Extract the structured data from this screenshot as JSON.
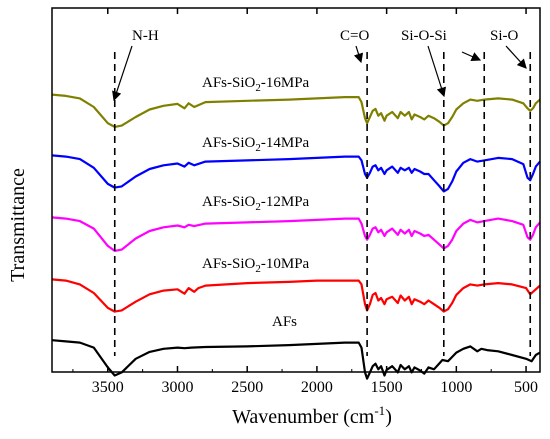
{
  "chart_data": {
    "type": "line",
    "xlabel": "Wavenumber (cm",
    "xlabel_sup": "-1",
    "xlabel_end": ")",
    "ylabel": "Transmittance",
    "xlim": [
      3900,
      400
    ],
    "x_reversed": true,
    "xticks": [
      3500,
      3000,
      2500,
      2000,
      1500,
      1000,
      500
    ],
    "ylim": [
      0,
      1
    ],
    "y_ticks_shown": false,
    "grid": false,
    "series": [
      {
        "name": "AFs",
        "label_parts": [
          "AFs",
          "",
          ""
        ],
        "color": "#000000",
        "offset": 0.0,
        "points": [
          [
            3900,
            0.82
          ],
          [
            3800,
            0.8
          ],
          [
            3700,
            0.78
          ],
          [
            3600,
            0.7
          ],
          [
            3500,
            0.38
          ],
          [
            3450,
            0.25
          ],
          [
            3400,
            0.3
          ],
          [
            3300,
            0.52
          ],
          [
            3200,
            0.63
          ],
          [
            3100,
            0.68
          ],
          [
            3000,
            0.7
          ],
          [
            2950,
            0.69
          ],
          [
            2900,
            0.7
          ],
          [
            2800,
            0.71
          ],
          [
            2500,
            0.72
          ],
          [
            2200,
            0.74
          ],
          [
            2000,
            0.76
          ],
          [
            1800,
            0.78
          ],
          [
            1700,
            0.78
          ],
          [
            1680,
            0.7
          ],
          [
            1655,
            0.3
          ],
          [
            1640,
            0.2
          ],
          [
            1620,
            0.3
          ],
          [
            1600,
            0.4
          ],
          [
            1580,
            0.44
          ],
          [
            1560,
            0.35
          ],
          [
            1540,
            0.4
          ],
          [
            1515,
            0.25
          ],
          [
            1500,
            0.34
          ],
          [
            1460,
            0.4
          ],
          [
            1420,
            0.3
          ],
          [
            1400,
            0.42
          ],
          [
            1370,
            0.35
          ],
          [
            1340,
            0.4
          ],
          [
            1320,
            0.3
          ],
          [
            1300,
            0.38
          ],
          [
            1260,
            0.33
          ],
          [
            1230,
            0.28
          ],
          [
            1200,
            0.38
          ],
          [
            1160,
            0.35
          ],
          [
            1120,
            0.45
          ],
          [
            1100,
            0.5
          ],
          [
            1060,
            0.48
          ],
          [
            1030,
            0.55
          ],
          [
            1000,
            0.62
          ],
          [
            950,
            0.68
          ],
          [
            900,
            0.72
          ],
          [
            850,
            0.64
          ],
          [
            820,
            0.68
          ],
          [
            780,
            0.66
          ],
          [
            700,
            0.64
          ],
          [
            600,
            0.58
          ],
          [
            500,
            0.52
          ],
          [
            460,
            0.48
          ],
          [
            430,
            0.58
          ],
          [
            400,
            0.62
          ]
        ]
      },
      {
        "name": "AFs-SiO2-10MPa",
        "label_parts": [
          "AFs-SiO",
          "2",
          "-10MPa"
        ],
        "color": "#ff0000",
        "offset": 1.0,
        "points": [
          [
            3900,
            0.8
          ],
          [
            3800,
            0.78
          ],
          [
            3700,
            0.72
          ],
          [
            3600,
            0.58
          ],
          [
            3500,
            0.34
          ],
          [
            3450,
            0.28
          ],
          [
            3400,
            0.3
          ],
          [
            3300,
            0.44
          ],
          [
            3200,
            0.56
          ],
          [
            3100,
            0.62
          ],
          [
            3000,
            0.64
          ],
          [
            2950,
            0.57
          ],
          [
            2920,
            0.66
          ],
          [
            2880,
            0.6
          ],
          [
            2850,
            0.66
          ],
          [
            2800,
            0.7
          ],
          [
            2500,
            0.74
          ],
          [
            2200,
            0.76
          ],
          [
            2000,
            0.78
          ],
          [
            1800,
            0.78
          ],
          [
            1700,
            0.78
          ],
          [
            1680,
            0.72
          ],
          [
            1655,
            0.4
          ],
          [
            1640,
            0.3
          ],
          [
            1620,
            0.4
          ],
          [
            1600,
            0.55
          ],
          [
            1580,
            0.58
          ],
          [
            1560,
            0.46
          ],
          [
            1540,
            0.5
          ],
          [
            1515,
            0.4
          ],
          [
            1500,
            0.48
          ],
          [
            1460,
            0.52
          ],
          [
            1420,
            0.42
          ],
          [
            1400,
            0.54
          ],
          [
            1370,
            0.46
          ],
          [
            1340,
            0.52
          ],
          [
            1320,
            0.4
          ],
          [
            1300,
            0.48
          ],
          [
            1260,
            0.44
          ],
          [
            1230,
            0.4
          ],
          [
            1200,
            0.46
          ],
          [
            1160,
            0.4
          ],
          [
            1120,
            0.34
          ],
          [
            1090,
            0.28
          ],
          [
            1060,
            0.32
          ],
          [
            1030,
            0.42
          ],
          [
            1000,
            0.55
          ],
          [
            950,
            0.66
          ],
          [
            900,
            0.72
          ],
          [
            850,
            0.7
          ],
          [
            800,
            0.72
          ],
          [
            700,
            0.74
          ],
          [
            600,
            0.72
          ],
          [
            500,
            0.66
          ],
          [
            470,
            0.56
          ],
          [
            440,
            0.62
          ],
          [
            400,
            0.7
          ]
        ]
      },
      {
        "name": "AFs-SiO2-12MPa",
        "label_parts": [
          "AFs-SiO",
          "2",
          "-12MPa"
        ],
        "color": "#ff00ff",
        "offset": 2.0,
        "points": [
          [
            3900,
            0.8
          ],
          [
            3800,
            0.78
          ],
          [
            3700,
            0.74
          ],
          [
            3600,
            0.62
          ],
          [
            3500,
            0.34
          ],
          [
            3450,
            0.26
          ],
          [
            3400,
            0.28
          ],
          [
            3300,
            0.46
          ],
          [
            3200,
            0.58
          ],
          [
            3100,
            0.64
          ],
          [
            3000,
            0.67
          ],
          [
            2950,
            0.64
          ],
          [
            2920,
            0.68
          ],
          [
            2880,
            0.66
          ],
          [
            2800,
            0.7
          ],
          [
            2500,
            0.72
          ],
          [
            2200,
            0.74
          ],
          [
            2000,
            0.76
          ],
          [
            1800,
            0.78
          ],
          [
            1700,
            0.78
          ],
          [
            1680,
            0.7
          ],
          [
            1655,
            0.5
          ],
          [
            1640,
            0.44
          ],
          [
            1620,
            0.52
          ],
          [
            1600,
            0.62
          ],
          [
            1580,
            0.64
          ],
          [
            1560,
            0.56
          ],
          [
            1540,
            0.6
          ],
          [
            1515,
            0.5
          ],
          [
            1500,
            0.56
          ],
          [
            1460,
            0.62
          ],
          [
            1420,
            0.52
          ],
          [
            1400,
            0.6
          ],
          [
            1370,
            0.54
          ],
          [
            1340,
            0.6
          ],
          [
            1320,
            0.5
          ],
          [
            1300,
            0.58
          ],
          [
            1260,
            0.54
          ],
          [
            1230,
            0.5
          ],
          [
            1200,
            0.52
          ],
          [
            1160,
            0.44
          ],
          [
            1120,
            0.36
          ],
          [
            1090,
            0.3
          ],
          [
            1060,
            0.34
          ],
          [
            1030,
            0.44
          ],
          [
            1000,
            0.58
          ],
          [
            950,
            0.7
          ],
          [
            900,
            0.76
          ],
          [
            850,
            0.72
          ],
          [
            800,
            0.74
          ],
          [
            700,
            0.78
          ],
          [
            600,
            0.74
          ],
          [
            520,
            0.68
          ],
          [
            490,
            0.48
          ],
          [
            470,
            0.44
          ],
          [
            450,
            0.52
          ],
          [
            430,
            0.64
          ],
          [
            400,
            0.72
          ]
        ]
      },
      {
        "name": "AFs-SiO2-14MPa",
        "label_parts": [
          "AFs-SiO",
          "2",
          "-14MPa"
        ],
        "color": "#0000ff",
        "offset": 3.0,
        "points": [
          [
            3900,
            0.8
          ],
          [
            3800,
            0.78
          ],
          [
            3700,
            0.74
          ],
          [
            3600,
            0.6
          ],
          [
            3500,
            0.34
          ],
          [
            3450,
            0.28
          ],
          [
            3400,
            0.3
          ],
          [
            3300,
            0.46
          ],
          [
            3200,
            0.58
          ],
          [
            3100,
            0.64
          ],
          [
            3000,
            0.67
          ],
          [
            2950,
            0.62
          ],
          [
            2920,
            0.68
          ],
          [
            2880,
            0.64
          ],
          [
            2800,
            0.7
          ],
          [
            2500,
            0.72
          ],
          [
            2200,
            0.74
          ],
          [
            2000,
            0.76
          ],
          [
            1800,
            0.78
          ],
          [
            1700,
            0.78
          ],
          [
            1680,
            0.72
          ],
          [
            1655,
            0.5
          ],
          [
            1640,
            0.44
          ],
          [
            1620,
            0.52
          ],
          [
            1600,
            0.62
          ],
          [
            1580,
            0.64
          ],
          [
            1560,
            0.56
          ],
          [
            1540,
            0.6
          ],
          [
            1515,
            0.5
          ],
          [
            1500,
            0.56
          ],
          [
            1460,
            0.62
          ],
          [
            1420,
            0.52
          ],
          [
            1400,
            0.6
          ],
          [
            1370,
            0.56
          ],
          [
            1340,
            0.6
          ],
          [
            1320,
            0.52
          ],
          [
            1300,
            0.58
          ],
          [
            1260,
            0.54
          ],
          [
            1230,
            0.5
          ],
          [
            1200,
            0.5
          ],
          [
            1160,
            0.4
          ],
          [
            1120,
            0.3
          ],
          [
            1090,
            0.22
          ],
          [
            1060,
            0.26
          ],
          [
            1030,
            0.38
          ],
          [
            1000,
            0.54
          ],
          [
            950,
            0.68
          ],
          [
            900,
            0.74
          ],
          [
            850,
            0.7
          ],
          [
            800,
            0.72
          ],
          [
            700,
            0.76
          ],
          [
            600,
            0.74
          ],
          [
            520,
            0.66
          ],
          [
            490,
            0.44
          ],
          [
            470,
            0.4
          ],
          [
            450,
            0.5
          ],
          [
            430,
            0.62
          ],
          [
            400,
            0.7
          ]
        ]
      },
      {
        "name": "AFs-SiO2-16MPa",
        "label_parts": [
          "AFs-SiO",
          "2",
          "-16MPa"
        ],
        "color": "#808000",
        "offset": 4.0,
        "points": [
          [
            3900,
            0.78
          ],
          [
            3800,
            0.76
          ],
          [
            3700,
            0.72
          ],
          [
            3600,
            0.58
          ],
          [
            3500,
            0.32
          ],
          [
            3450,
            0.26
          ],
          [
            3400,
            0.28
          ],
          [
            3300,
            0.42
          ],
          [
            3200,
            0.54
          ],
          [
            3100,
            0.6
          ],
          [
            3000,
            0.63
          ],
          [
            2950,
            0.56
          ],
          [
            2920,
            0.64
          ],
          [
            2880,
            0.58
          ],
          [
            2800,
            0.66
          ],
          [
            2500,
            0.68
          ],
          [
            2200,
            0.7
          ],
          [
            2000,
            0.72
          ],
          [
            1800,
            0.74
          ],
          [
            1700,
            0.74
          ],
          [
            1680,
            0.66
          ],
          [
            1655,
            0.4
          ],
          [
            1640,
            0.32
          ],
          [
            1620,
            0.42
          ],
          [
            1600,
            0.52
          ],
          [
            1580,
            0.55
          ],
          [
            1560,
            0.44
          ],
          [
            1540,
            0.48
          ],
          [
            1515,
            0.36
          ],
          [
            1500,
            0.44
          ],
          [
            1460,
            0.5
          ],
          [
            1420,
            0.4
          ],
          [
            1400,
            0.5
          ],
          [
            1370,
            0.44
          ],
          [
            1340,
            0.5
          ],
          [
            1320,
            0.38
          ],
          [
            1300,
            0.46
          ],
          [
            1260,
            0.42
          ],
          [
            1230,
            0.38
          ],
          [
            1200,
            0.44
          ],
          [
            1160,
            0.4
          ],
          [
            1120,
            0.34
          ],
          [
            1090,
            0.28
          ],
          [
            1060,
            0.32
          ],
          [
            1030,
            0.42
          ],
          [
            1000,
            0.54
          ],
          [
            950,
            0.64
          ],
          [
            900,
            0.7
          ],
          [
            850,
            0.68
          ],
          [
            800,
            0.7
          ],
          [
            700,
            0.72
          ],
          [
            600,
            0.7
          ],
          [
            520,
            0.64
          ],
          [
            490,
            0.56
          ],
          [
            470,
            0.52
          ],
          [
            450,
            0.56
          ],
          [
            430,
            0.64
          ],
          [
            400,
            0.7
          ]
        ]
      }
    ],
    "annotations": [
      {
        "id": "nh",
        "text": "N-H",
        "x": 3450
      },
      {
        "id": "co",
        "text": "C=O",
        "x": 1640
      },
      {
        "id": "sisi",
        "text": "Si-O-Si",
        "x": 1090
      },
      {
        "id": "sio",
        "text": "Si-O",
        "x": 470
      }
    ],
    "dashed_lines_at": [
      3450,
      1640,
      1090,
      800,
      470
    ]
  }
}
